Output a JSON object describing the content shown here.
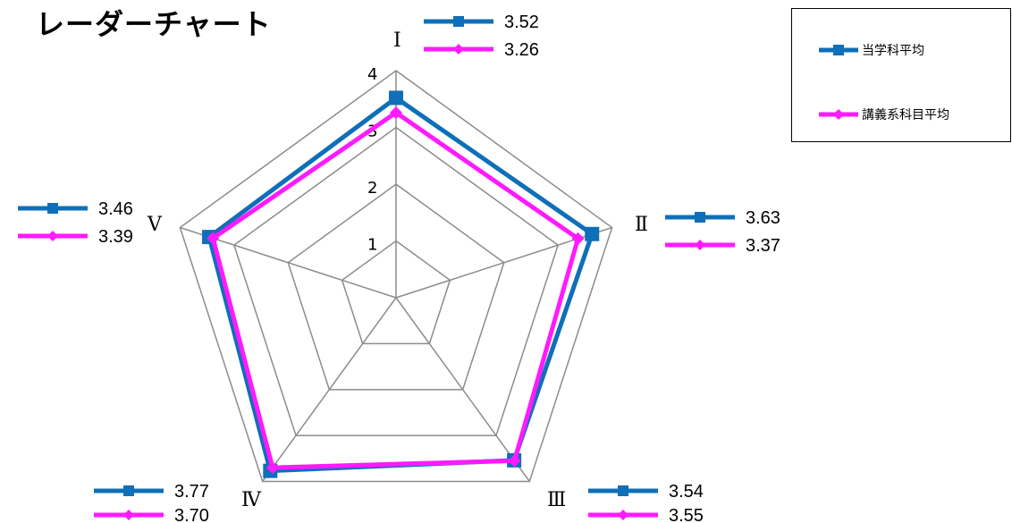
{
  "title": "レーダーチャート",
  "colors": {
    "series1": "#0f6fb8",
    "series2": "#ff1aff",
    "grid": "#8c8c8c"
  },
  "legend": {
    "items": [
      {
        "label": "当学科平均",
        "icon": "square-marker-icon"
      },
      {
        "label": "講義系科目平均",
        "icon": "diamond-marker-icon"
      }
    ]
  },
  "chart_data": {
    "type": "radar",
    "title": "レーダーチャート",
    "categories": [
      "Ⅰ",
      "Ⅱ",
      "Ⅲ",
      "Ⅳ",
      "Ⅴ"
    ],
    "rlim": [
      0,
      4
    ],
    "ticks": [
      "1",
      "2",
      "3",
      "4"
    ],
    "grid": true,
    "legend_position": "top-right",
    "series": [
      {
        "name": "当学科平均",
        "values": [
          3.52,
          3.63,
          3.54,
          3.77,
          3.46
        ],
        "labels": [
          "3.52",
          "3.63",
          "3.54",
          "3.77",
          "3.46"
        ],
        "marker": "square"
      },
      {
        "name": "講義系科目平均",
        "values": [
          3.26,
          3.37,
          3.55,
          3.7,
          3.39
        ],
        "labels": [
          "3.26",
          "3.37",
          "3.55",
          "3.70",
          "3.39"
        ],
        "marker": "diamond"
      }
    ]
  }
}
